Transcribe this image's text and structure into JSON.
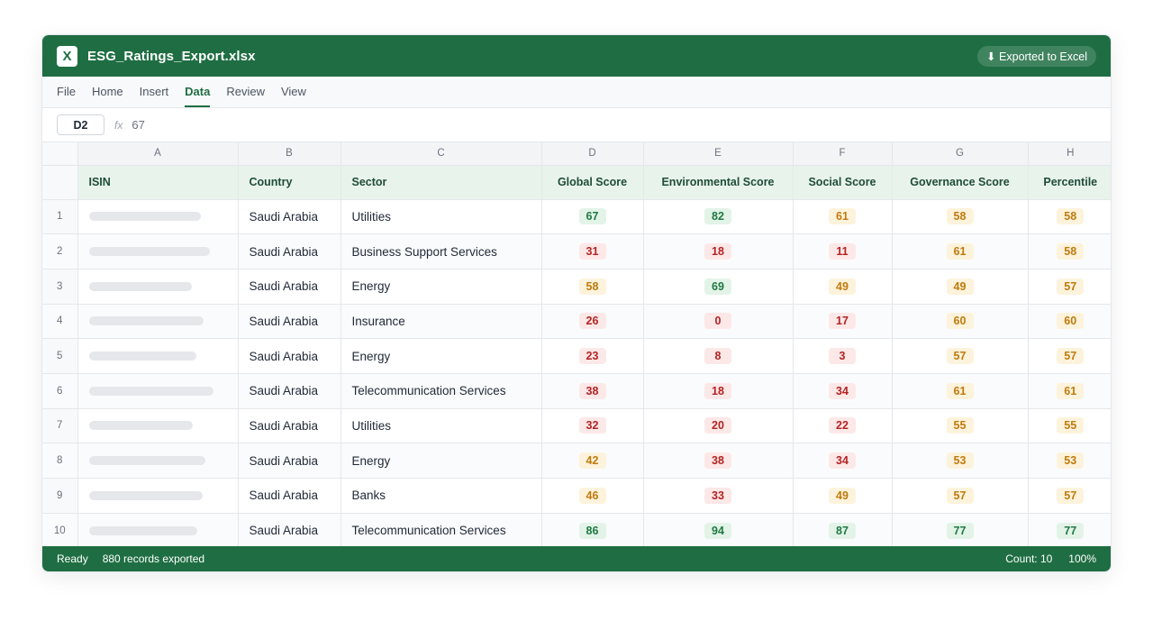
{
  "titlebar": {
    "app_icon": "X",
    "filename": "ESG_Ratings_Export.xlsx",
    "export_badge": "⬇ Exported to Excel"
  },
  "menu": [
    "File",
    "Home",
    "Insert",
    "Data",
    "Review",
    "View"
  ],
  "active_menu": "Data",
  "formula_bar": {
    "cell": "D2",
    "fx_label": "fx",
    "value": "67"
  },
  "column_letters": [
    "A",
    "B",
    "C",
    "D",
    "E",
    "F",
    "G",
    "H"
  ],
  "headers": [
    "ISIN",
    "Country",
    "Sector",
    "Global Score",
    "Environmental Score",
    "Social Score",
    "Governance Score",
    "Percentile"
  ],
  "rows": [
    {
      "num": "1",
      "isin_bar": 0.72,
      "country": "Saudi Arabia",
      "sector": "Utilities",
      "global": "67",
      "env": "82",
      "social": "61",
      "gov": "58",
      "pct": "58"
    },
    {
      "num": "2",
      "isin_bar": 0.78,
      "country": "Saudi Arabia",
      "sector": "Business Support Services",
      "global": "31",
      "env": "18",
      "social": "11",
      "gov": "61",
      "pct": "58"
    },
    {
      "num": "3",
      "isin_bar": 0.66,
      "country": "Saudi Arabia",
      "sector": "Energy",
      "global": "58",
      "env": "69",
      "social": "49",
      "gov": "49",
      "pct": "57"
    },
    {
      "num": "4",
      "isin_bar": 0.74,
      "country": "Saudi Arabia",
      "sector": "Insurance",
      "global": "26",
      "env": "0",
      "social": "17",
      "gov": "60",
      "pct": "60"
    },
    {
      "num": "5",
      "isin_bar": 0.69,
      "country": "Saudi Arabia",
      "sector": "Energy",
      "global": "23",
      "env": "8",
      "social": "3",
      "gov": "57",
      "pct": "57"
    },
    {
      "num": "6",
      "isin_bar": 0.8,
      "country": "Saudi Arabia",
      "sector": "Telecommunication Services",
      "global": "38",
      "env": "18",
      "social": "34",
      "gov": "61",
      "pct": "61"
    },
    {
      "num": "7",
      "isin_bar": 0.67,
      "country": "Saudi Arabia",
      "sector": "Utilities",
      "global": "32",
      "env": "20",
      "social": "22",
      "gov": "55",
      "pct": "55"
    },
    {
      "num": "8",
      "isin_bar": 0.75,
      "country": "Saudi Arabia",
      "sector": "Energy",
      "global": "42",
      "env": "38",
      "social": "34",
      "gov": "53",
      "pct": "53"
    },
    {
      "num": "9",
      "isin_bar": 0.73,
      "country": "Saudi Arabia",
      "sector": "Banks",
      "global": "46",
      "env": "33",
      "social": "49",
      "gov": "57",
      "pct": "57"
    },
    {
      "num": "10",
      "isin_bar": 0.7,
      "country": "Saudi Arabia",
      "sector": "Telecommunication Services",
      "global": "86",
      "env": "94",
      "social": "87",
      "gov": "77",
      "pct": "77"
    }
  ],
  "status": {
    "state": "Ready",
    "records": "880 records exported",
    "count": "Count: 10",
    "zoom": "100%"
  },
  "colors": {
    "brand": "#1f6e43",
    "good": "#1f7a43",
    "mid": "#c07a0c",
    "poor": "#b42323"
  }
}
